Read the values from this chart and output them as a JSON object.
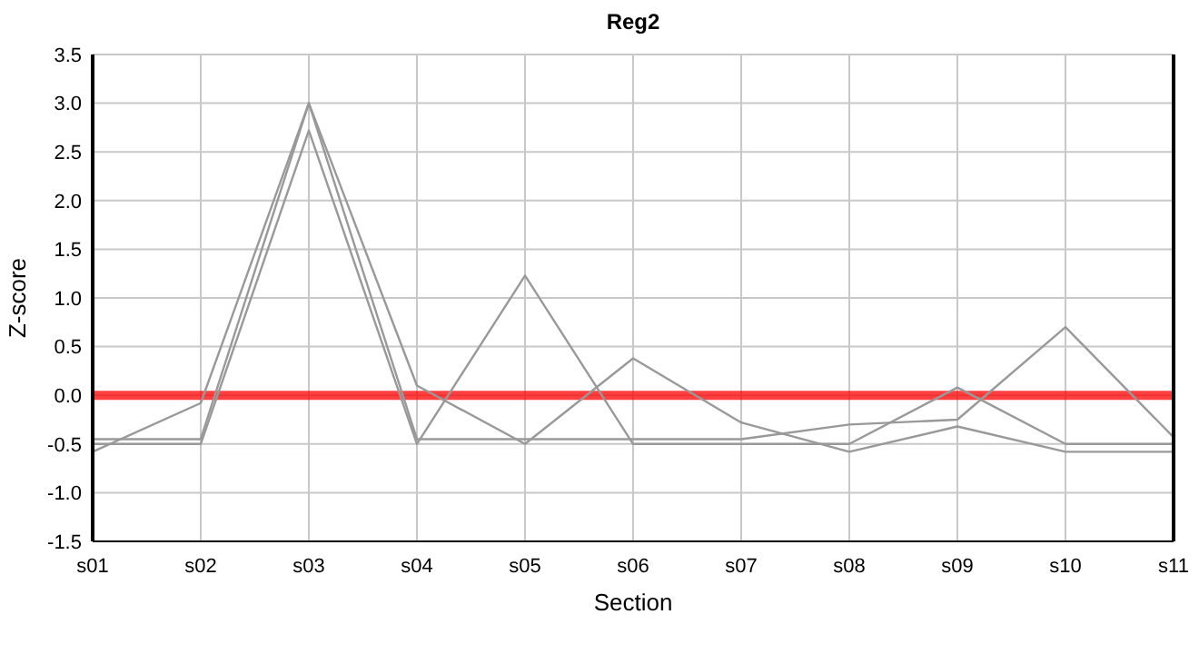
{
  "chart_data": {
    "type": "line",
    "title": "Reg2",
    "xlabel": "Section",
    "ylabel": "Z-score",
    "categories": [
      "s01",
      "s02",
      "s03",
      "s04",
      "s05",
      "s06",
      "s07",
      "s08",
      "s09",
      "s10",
      "s11"
    ],
    "series": [
      {
        "color": "#999999",
        "values": [
          -0.58,
          -0.08,
          3.0,
          0.1,
          -0.5,
          0.38,
          -0.28,
          -0.58,
          -0.32,
          -0.58,
          -0.58
        ]
      },
      {
        "color": "#999999",
        "values": [
          -0.5,
          -0.5,
          2.72,
          -0.5,
          1.23,
          -0.5,
          -0.5,
          -0.5,
          0.08,
          -0.5,
          -0.5
        ]
      },
      {
        "color": "#999999",
        "values": [
          -0.45,
          -0.45,
          3.0,
          -0.45,
          -0.45,
          -0.45,
          -0.45,
          -0.3,
          -0.25,
          0.7,
          -0.43
        ]
      }
    ],
    "ylim": [
      -1.5,
      3.5
    ],
    "yticks": [
      {
        "value": -1.5,
        "label": "-1.5"
      },
      {
        "value": -1,
        "label": "-1.0"
      },
      {
        "value": -0.5,
        "label": "-0.5"
      },
      {
        "value": 0,
        "label": "0.0"
      },
      {
        "value": 0.5,
        "label": "0.5"
      },
      {
        "value": 1,
        "label": "1.0"
      },
      {
        "value": 1.5,
        "label": "1.5"
      },
      {
        "value": 2,
        "label": "2.0"
      },
      {
        "value": 2.5,
        "label": "2.5"
      },
      {
        "value": 3,
        "label": "3.0"
      },
      {
        "value": 3.5,
        "label": "3.5"
      }
    ],
    "ref_lines": [
      {
        "axis": "y",
        "value": 0,
        "color": "#ff0000"
      }
    ],
    "grid": true,
    "marker": "none",
    "line_style": "solid"
  }
}
